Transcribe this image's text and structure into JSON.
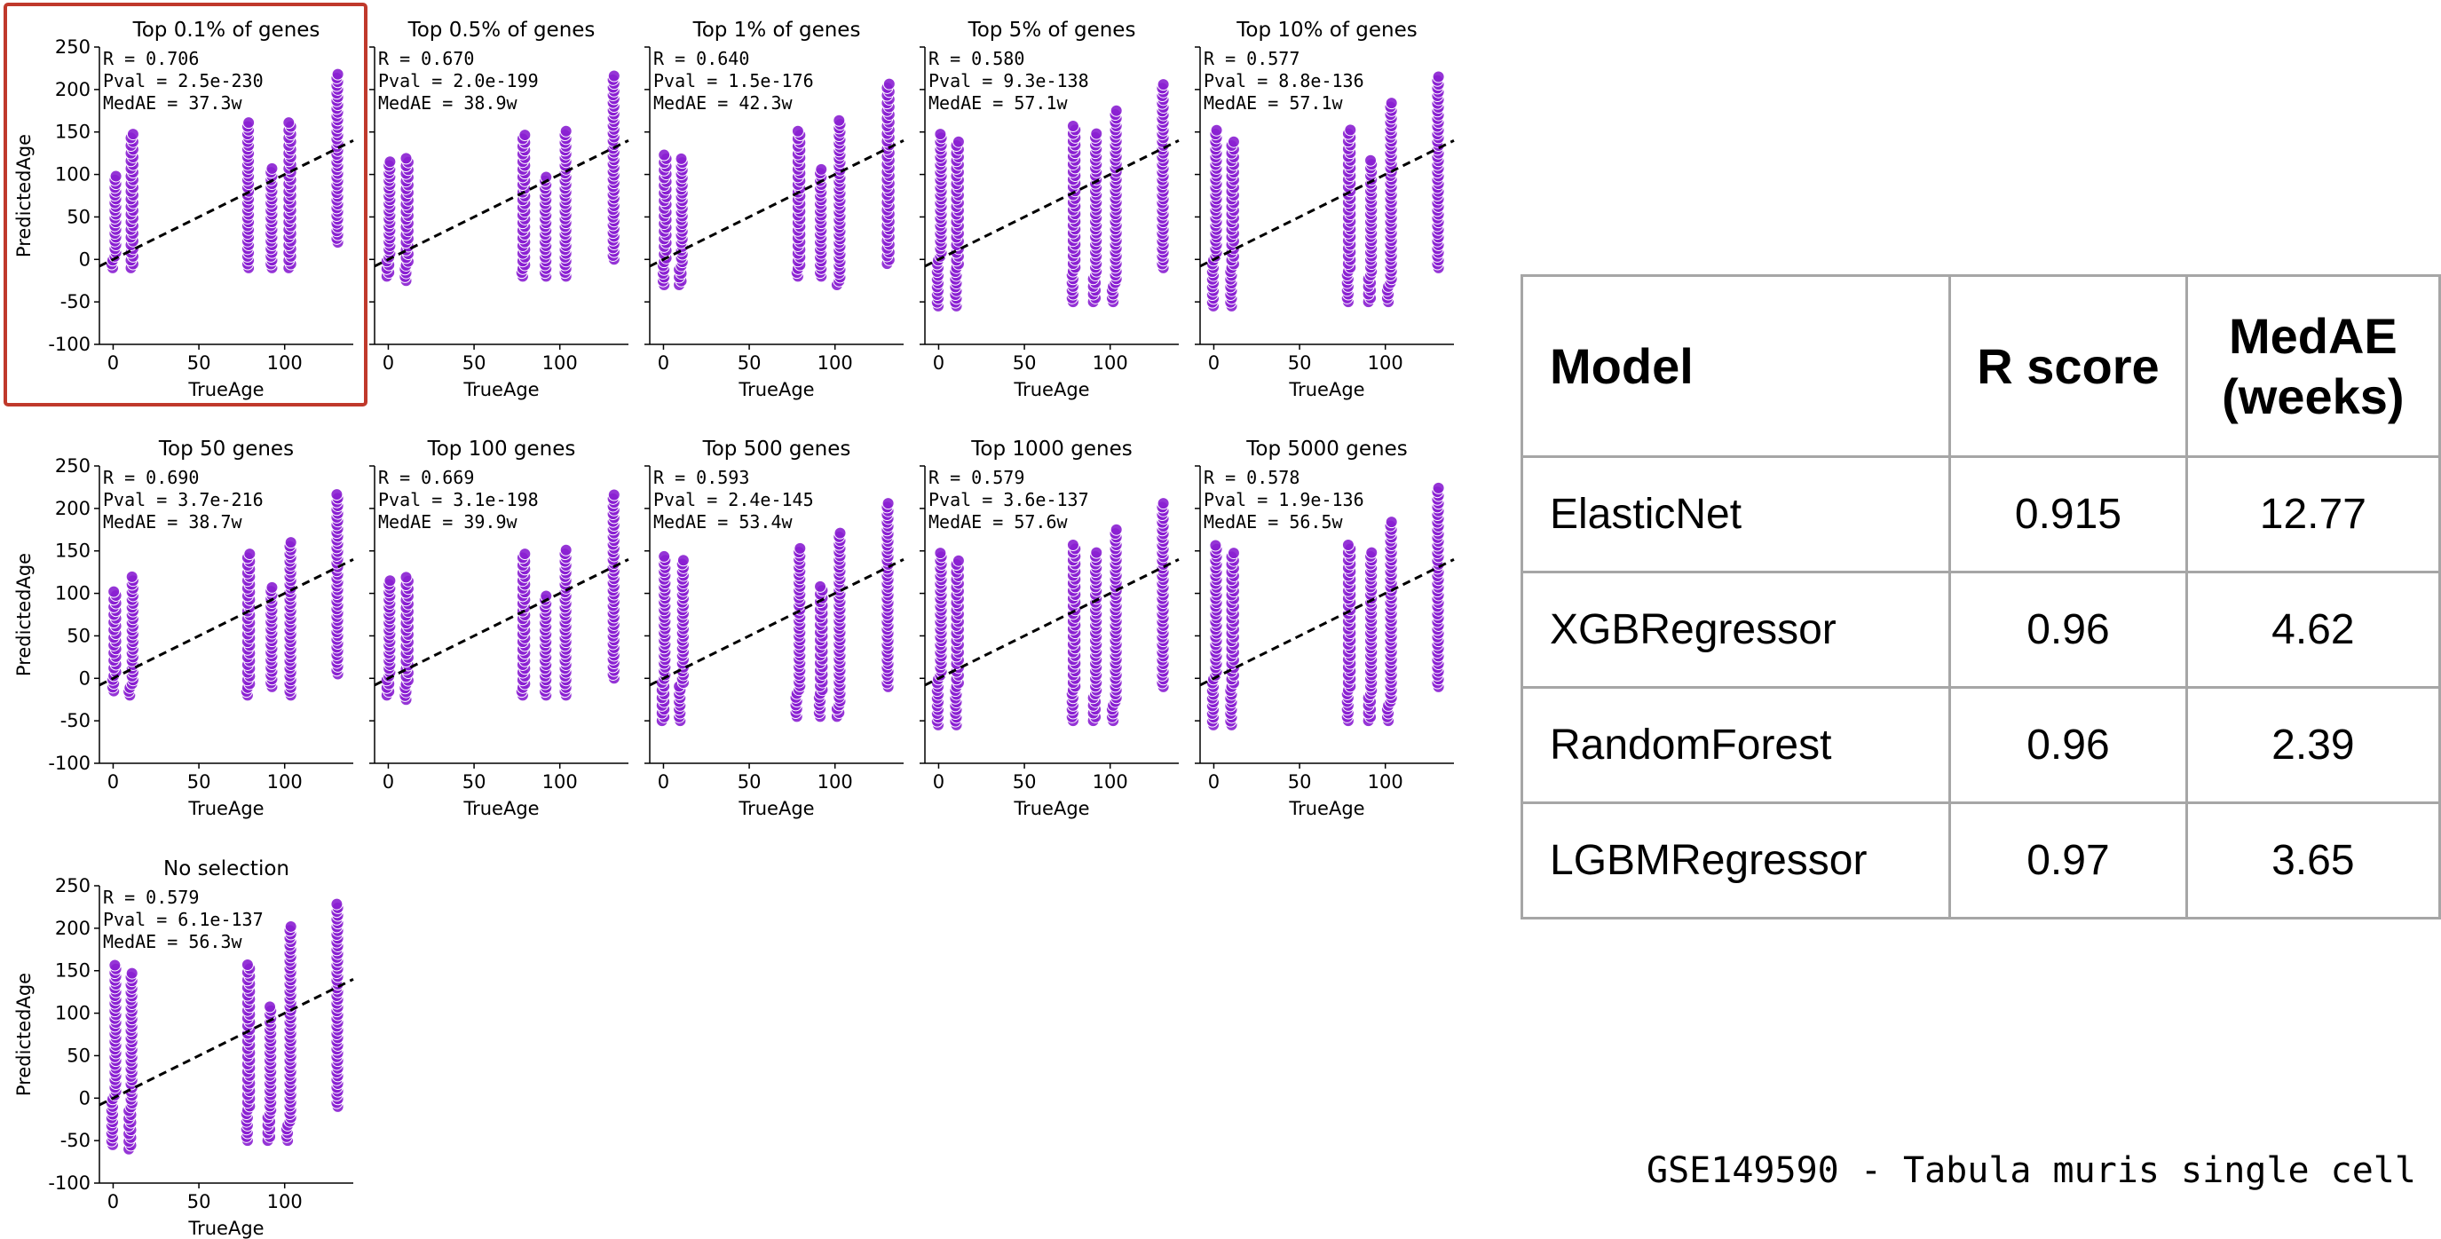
{
  "colors": {
    "points": "#8a1fd1",
    "point_edge": "#ffffff",
    "fit_line": "#000000",
    "highlight": "#c0392b"
  },
  "chart_data": [
    {
      "type": "scatter",
      "title": "Top 0.1% of genes",
      "stats": [
        "R = 0.706",
        "Pval = 2.5e-230",
        "MedAE = 37.3w"
      ],
      "xlabel": "TrueAge",
      "ylabel": "PredictedAge",
      "xlim": [
        -8,
        140
      ],
      "ylim": [
        -100,
        250
      ],
      "xticks": [
        0,
        50,
        100
      ],
      "yticks": [
        -100,
        -50,
        0,
        50,
        100,
        150,
        200,
        250
      ],
      "x": [
        1,
        11,
        79,
        92,
        103,
        131
      ],
      "y_ranges": [
        [
          -10,
          100
        ],
        [
          -10,
          150
        ],
        [
          -10,
          165
        ],
        [
          -10,
          110
        ],
        [
          -10,
          165
        ],
        [
          20,
          220
        ]
      ],
      "fit_line": [
        [
          -8,
          -8
        ],
        [
          140,
          140
        ]
      ],
      "highlighted": true
    },
    {
      "type": "scatter",
      "title": "Top 0.5% of genes",
      "stats": [
        "R = 0.670",
        "Pval = 2.0e-199",
        "MedAE = 38.9w"
      ],
      "xlabel": "TrueAge",
      "ylabel": "PredictedAge",
      "xlim": [
        -8,
        140
      ],
      "ylim": [
        -100,
        250
      ],
      "xticks": [
        0,
        50,
        100
      ],
      "yticks": [
        -100,
        -50,
        0,
        50,
        100,
        150,
        200,
        250
      ],
      "x": [
        1,
        11,
        79,
        92,
        103,
        131
      ],
      "y_ranges": [
        [
          -20,
          115
        ],
        [
          -25,
          120
        ],
        [
          -20,
          150
        ],
        [
          -20,
          100
        ],
        [
          -20,
          155
        ],
        [
          0,
          220
        ]
      ],
      "fit_line": [
        [
          -8,
          -8
        ],
        [
          140,
          140
        ]
      ]
    },
    {
      "type": "scatter",
      "title": "Top 1% of genes",
      "stats": [
        "R = 0.640",
        "Pval = 1.5e-176",
        "MedAE = 42.3w"
      ],
      "xlabel": "TrueAge",
      "ylabel": "PredictedAge",
      "xlim": [
        -8,
        140
      ],
      "ylim": [
        -100,
        250
      ],
      "xticks": [
        0,
        50,
        100
      ],
      "yticks": [
        -100,
        -50,
        0,
        50,
        100,
        150,
        200,
        250
      ],
      "x": [
        1,
        11,
        79,
        92,
        103,
        131
      ],
      "y_ranges": [
        [
          -30,
          125
        ],
        [
          -30,
          120
        ],
        [
          -20,
          155
        ],
        [
          -20,
          110
        ],
        [
          -30,
          165
        ],
        [
          -5,
          210
        ]
      ],
      "fit_line": [
        [
          -8,
          -8
        ],
        [
          140,
          140
        ]
      ]
    },
    {
      "type": "scatter",
      "title": "Top 5% of genes",
      "stats": [
        "R = 0.580",
        "Pval = 9.3e-138",
        "MedAE = 57.1w"
      ],
      "xlabel": "TrueAge",
      "ylabel": "PredictedAge",
      "xlim": [
        -8,
        140
      ],
      "ylim": [
        -100,
        250
      ],
      "xticks": [
        0,
        50,
        100
      ],
      "yticks": [
        -100,
        -50,
        0,
        50,
        100,
        150,
        200,
        250
      ],
      "x": [
        1,
        11,
        79,
        92,
        103,
        131
      ],
      "y_ranges": [
        [
          -55,
          150
        ],
        [
          -55,
          140
        ],
        [
          -50,
          160
        ],
        [
          -50,
          150
        ],
        [
          -50,
          175
        ],
        [
          -10,
          210
        ]
      ],
      "fit_line": [
        [
          -8,
          -8
        ],
        [
          140,
          140
        ]
      ]
    },
    {
      "type": "scatter",
      "title": "Top 10% of genes",
      "stats": [
        "R = 0.577",
        "Pval = 8.8e-136",
        "MedAE = 57.1w"
      ],
      "xlabel": "TrueAge",
      "ylabel": "PredictedAge",
      "xlim": [
        -8,
        140
      ],
      "ylim": [
        -100,
        250
      ],
      "xticks": [
        0,
        50,
        100
      ],
      "yticks": [
        -100,
        -50,
        0,
        50,
        100,
        150,
        200,
        250
      ],
      "x": [
        1,
        11,
        79,
        92,
        103,
        131
      ],
      "y_ranges": [
        [
          -55,
          155
        ],
        [
          -55,
          140
        ],
        [
          -50,
          155
        ],
        [
          -50,
          120
        ],
        [
          -50,
          185
        ],
        [
          -10,
          215
        ]
      ],
      "fit_line": [
        [
          -8,
          -8
        ],
        [
          140,
          140
        ]
      ]
    },
    {
      "type": "scatter",
      "title": "Top 50 genes",
      "stats": [
        "R = 0.690",
        "Pval = 3.7e-216",
        "MedAE = 38.7w"
      ],
      "xlabel": "TrueAge",
      "ylabel": "PredictedAge",
      "xlim": [
        -8,
        140
      ],
      "ylim": [
        -100,
        250
      ],
      "xticks": [
        0,
        50,
        100
      ],
      "yticks": [
        -100,
        -50,
        0,
        50,
        100,
        150,
        200,
        250
      ],
      "x": [
        1,
        11,
        79,
        92,
        103,
        131
      ],
      "y_ranges": [
        [
          -15,
          105
        ],
        [
          -20,
          120
        ],
        [
          -20,
          150
        ],
        [
          -10,
          110
        ],
        [
          -20,
          160
        ],
        [
          5,
          220
        ]
      ],
      "fit_line": [
        [
          -8,
          -8
        ],
        [
          140,
          140
        ]
      ]
    },
    {
      "type": "scatter",
      "title": "Top 100 genes",
      "stats": [
        "R = 0.669",
        "Pval = 3.1e-198",
        "MedAE = 39.9w"
      ],
      "xlabel": "TrueAge",
      "ylabel": "PredictedAge",
      "xlim": [
        -8,
        140
      ],
      "ylim": [
        -100,
        250
      ],
      "xticks": [
        0,
        50,
        100
      ],
      "yticks": [
        -100,
        -50,
        0,
        50,
        100,
        150,
        200,
        250
      ],
      "x": [
        1,
        11,
        79,
        92,
        103,
        131
      ],
      "y_ranges": [
        [
          -20,
          115
        ],
        [
          -25,
          120
        ],
        [
          -20,
          150
        ],
        [
          -20,
          100
        ],
        [
          -20,
          155
        ],
        [
          0,
          220
        ]
      ],
      "fit_line": [
        [
          -8,
          -8
        ],
        [
          140,
          140
        ]
      ]
    },
    {
      "type": "scatter",
      "title": "Top 500 genes",
      "stats": [
        "R = 0.593",
        "Pval = 2.4e-145",
        "MedAE = 53.4w"
      ],
      "xlabel": "TrueAge",
      "ylabel": "PredictedAge",
      "xlim": [
        -8,
        140
      ],
      "ylim": [
        -100,
        250
      ],
      "xticks": [
        0,
        50,
        100
      ],
      "yticks": [
        -100,
        -50,
        0,
        50,
        100,
        150,
        200,
        250
      ],
      "x": [
        1,
        11,
        79,
        92,
        103,
        131
      ],
      "y_ranges": [
        [
          -50,
          145
        ],
        [
          -50,
          140
        ],
        [
          -45,
          155
        ],
        [
          -45,
          110
        ],
        [
          -45,
          175
        ],
        [
          -10,
          210
        ]
      ],
      "fit_line": [
        [
          -8,
          -8
        ],
        [
          140,
          140
        ]
      ]
    },
    {
      "type": "scatter",
      "title": "Top 1000 genes",
      "stats": [
        "R = 0.579",
        "Pval = 3.6e-137",
        "MedAE = 57.6w"
      ],
      "xlabel": "TrueAge",
      "ylabel": "PredictedAge",
      "xlim": [
        -8,
        140
      ],
      "ylim": [
        -100,
        250
      ],
      "xticks": [
        0,
        50,
        100
      ],
      "yticks": [
        -100,
        -50,
        0,
        50,
        100,
        150,
        200,
        250
      ],
      "x": [
        1,
        11,
        79,
        92,
        103,
        131
      ],
      "y_ranges": [
        [
          -55,
          150
        ],
        [
          -55,
          140
        ],
        [
          -50,
          160
        ],
        [
          -50,
          150
        ],
        [
          -50,
          175
        ],
        [
          -10,
          210
        ]
      ],
      "fit_line": [
        [
          -8,
          -8
        ],
        [
          140,
          140
        ]
      ]
    },
    {
      "type": "scatter",
      "title": "Top 5000 genes",
      "stats": [
        "R = 0.578",
        "Pval = 1.9e-136",
        "MedAE = 56.5w"
      ],
      "xlabel": "TrueAge",
      "ylabel": "PredictedAge",
      "xlim": [
        -8,
        140
      ],
      "ylim": [
        -100,
        250
      ],
      "xticks": [
        0,
        50,
        100
      ],
      "yticks": [
        -100,
        -50,
        0,
        50,
        100,
        150,
        200,
        250
      ],
      "x": [
        1,
        11,
        79,
        92,
        103,
        131
      ],
      "y_ranges": [
        [
          -55,
          160
        ],
        [
          -55,
          150
        ],
        [
          -50,
          160
        ],
        [
          -50,
          150
        ],
        [
          -50,
          185
        ],
        [
          -10,
          225
        ]
      ],
      "fit_line": [
        [
          -8,
          -8
        ],
        [
          140,
          140
        ]
      ]
    },
    {
      "type": "scatter",
      "title": "No selection",
      "stats": [
        "R = 0.579",
        "Pval = 6.1e-137",
        "MedAE = 56.3w"
      ],
      "xlabel": "TrueAge",
      "ylabel": "PredictedAge",
      "xlim": [
        -8,
        140
      ],
      "ylim": [
        -100,
        250
      ],
      "xticks": [
        0,
        50,
        100
      ],
      "yticks": [
        -100,
        -50,
        0,
        50,
        100,
        150,
        200,
        250
      ],
      "x": [
        1,
        11,
        79,
        92,
        103,
        131
      ],
      "y_ranges": [
        [
          -55,
          160
        ],
        [
          -60,
          150
        ],
        [
          -50,
          160
        ],
        [
          -50,
          110
        ],
        [
          -50,
          205
        ],
        [
          -10,
          230
        ]
      ],
      "fit_line": [
        [
          -8,
          -8
        ],
        [
          140,
          140
        ]
      ]
    }
  ],
  "table": {
    "headers": [
      "Model",
      "R score",
      "MedAE\n(weeks)"
    ],
    "rows": [
      [
        "ElasticNet",
        "0.915",
        "12.77"
      ],
      [
        "XGBRegressor",
        "0.96",
        "4.62"
      ],
      [
        "RandomForest",
        "0.96",
        "2.39"
      ],
      [
        "LGBMRegressor",
        "0.97",
        "3.65"
      ]
    ]
  },
  "caption": "GSE149590 - Tabula muris single cell"
}
